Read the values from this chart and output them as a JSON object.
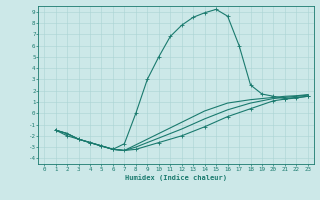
{
  "xlabel": "Humidex (Indice chaleur)",
  "bg_color": "#cce8e8",
  "grid_color": "#aad4d4",
  "line_color": "#1a7a6e",
  "xlim": [
    -0.5,
    23.5
  ],
  "ylim": [
    -4.5,
    9.5
  ],
  "xticks": [
    0,
    1,
    2,
    3,
    4,
    5,
    6,
    7,
    8,
    9,
    10,
    11,
    12,
    13,
    14,
    15,
    16,
    17,
    18,
    19,
    20,
    21,
    22,
    23
  ],
  "yticks": [
    -4,
    -3,
    -2,
    -1,
    0,
    1,
    2,
    3,
    4,
    5,
    6,
    7,
    8,
    9
  ],
  "curve1_x": [
    1,
    2,
    3,
    4,
    5,
    6,
    7,
    8,
    9,
    10,
    11,
    12,
    13,
    14,
    15,
    16,
    17,
    18,
    19,
    20,
    21,
    22,
    23
  ],
  "curve1_y": [
    -1.5,
    -2.0,
    -2.3,
    -2.6,
    -2.9,
    -3.2,
    -2.7,
    0.0,
    3.0,
    5.0,
    6.8,
    7.8,
    8.5,
    8.9,
    9.2,
    8.6,
    6.0,
    2.5,
    1.7,
    1.5,
    1.3,
    1.4,
    1.5
  ],
  "curve2_x": [
    1,
    2,
    3,
    4,
    5,
    6,
    7,
    8,
    10,
    12,
    14,
    16,
    18,
    20,
    21,
    22,
    23
  ],
  "curve2_y": [
    -1.5,
    -1.8,
    -2.3,
    -2.6,
    -2.9,
    -3.2,
    -3.3,
    -3.2,
    -2.6,
    -2.0,
    -1.2,
    -0.3,
    0.4,
    1.1,
    1.25,
    1.35,
    1.5
  ],
  "curve3_x": [
    1,
    2,
    3,
    4,
    5,
    6,
    7,
    8,
    10,
    12,
    14,
    16,
    18,
    20,
    21,
    22,
    23
  ],
  "curve3_y": [
    -1.5,
    -1.8,
    -2.3,
    -2.6,
    -2.9,
    -3.2,
    -3.3,
    -3.0,
    -2.2,
    -1.4,
    -0.5,
    0.3,
    0.9,
    1.3,
    1.4,
    1.5,
    1.6
  ],
  "curve4_x": [
    1,
    2,
    3,
    4,
    5,
    6,
    7,
    8,
    10,
    12,
    14,
    16,
    18,
    20,
    21,
    22,
    23
  ],
  "curve4_y": [
    -1.5,
    -1.8,
    -2.3,
    -2.6,
    -2.9,
    -3.2,
    -3.3,
    -2.8,
    -1.8,
    -0.8,
    0.2,
    0.9,
    1.2,
    1.4,
    1.5,
    1.55,
    1.65
  ]
}
